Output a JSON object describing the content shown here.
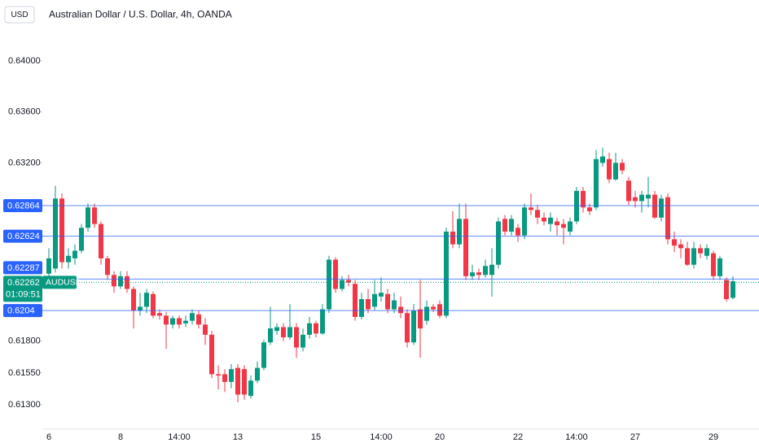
{
  "chart_data": {
    "type": "candlestick",
    "title": "Australian Dollar / U.S. Dollar, 4h, OANDA",
    "currency": "USD",
    "up_color": "#089981",
    "down_color": "#f23645",
    "level_color": "#2962ff",
    "ylim": [
      0.61109,
      0.64479
    ],
    "yticks": [
      {
        "value": 0.64,
        "label": "0.64000"
      },
      {
        "value": 0.636,
        "label": "0.63600"
      },
      {
        "value": 0.632,
        "label": "0.63200"
      },
      {
        "value": 0.618,
        "label": "0.61800"
      },
      {
        "value": 0.6155,
        "label": "0.61550"
      },
      {
        "value": 0.613,
        "label": "0.61300"
      }
    ],
    "levels": [
      0.62864,
      0.62624,
      0.62287,
      0.6204
    ],
    "last_price": {
      "value": 0.62262,
      "symbol": "AUDUSD",
      "countdown": "01:09:51"
    },
    "categories": [
      "6",
      null,
      null,
      null,
      null,
      null,
      null,
      null,
      null,
      null,
      null,
      "8",
      null,
      null,
      null,
      null,
      null,
      null,
      null,
      null,
      "14:00",
      null,
      null,
      null,
      null,
      null,
      null,
      null,
      null,
      "13",
      null,
      null,
      null,
      null,
      null,
      null,
      null,
      null,
      null,
      null,
      null,
      "15",
      null,
      null,
      null,
      null,
      null,
      null,
      null,
      null,
      null,
      "14:00",
      null,
      null,
      null,
      null,
      null,
      null,
      null,
      null,
      "20",
      null,
      null,
      null,
      null,
      null,
      null,
      null,
      null,
      null,
      null,
      null,
      "22",
      null,
      null,
      null,
      null,
      null,
      null,
      null,
      null,
      "14:00",
      null,
      null,
      null,
      null,
      null,
      null,
      null,
      null,
      "27",
      null,
      null,
      null,
      null,
      null,
      null,
      null,
      null,
      null,
      null,
      null,
      "29",
      null,
      null,
      null
    ],
    "open": [
      0.6233,
      0.6237,
      0.6292,
      0.6242,
      0.6245,
      0.6251,
      0.6269,
      0.6285,
      0.6272,
      0.6245,
      0.6232,
      0.6223,
      0.6231,
      0.6221,
      0.6204,
      0.6207,
      0.6217,
      0.6202,
      0.62,
      0.6193,
      0.6198,
      0.6194,
      0.6196,
      0.6201,
      0.6193,
      0.6185,
      0.6154,
      0.6154,
      0.6148,
      0.6159,
      0.6158,
      0.6137,
      0.6149,
      0.6159,
      0.6179,
      0.6188,
      0.6191,
      0.6183,
      0.6191,
      0.6175,
      0.6185,
      0.6194,
      0.6186,
      0.6205,
      0.6244,
      0.6221,
      0.6228,
      0.6225,
      0.6199,
      0.6213,
      0.6207,
      0.6215,
      0.6217,
      0.6205,
      0.6207,
      0.6202,
      0.6179,
      0.6205,
      0.6196,
      0.6207,
      0.6209,
      0.62,
      0.6266,
      0.6256,
      0.6276,
      0.6231,
      0.6234,
      0.6232,
      0.6232,
      0.624,
      0.6276,
      0.6266,
      0.6269,
      0.6263,
      0.6285,
      0.6283,
      0.6277,
      0.6272,
      0.6274,
      0.6272,
      0.6266,
      0.6274,
      0.6298,
      0.6285,
      0.6285,
      0.632,
      0.6323,
      0.6307,
      0.632,
      0.6306,
      0.6293,
      0.629,
      0.6292,
      0.6295,
      0.6277,
      0.6293,
      0.626,
      0.6256,
      0.6253,
      0.624,
      0.6253,
      0.6247,
      0.6249,
      0.6231,
      0.6228,
      0.6214
    ],
    "high": [
      0.6253,
      0.6302,
      0.6296,
      0.6253,
      0.6256,
      0.6272,
      0.6288,
      0.6288,
      0.6274,
      0.6247,
      0.6235,
      0.6235,
      0.6235,
      0.6223,
      0.6218,
      0.6221,
      0.6219,
      0.6205,
      0.6203,
      0.62,
      0.62,
      0.62,
      0.6205,
      0.6204,
      0.6198,
      0.6188,
      0.6161,
      0.6158,
      0.6162,
      0.6162,
      0.6161,
      0.6153,
      0.6164,
      0.6181,
      0.6207,
      0.6194,
      0.6194,
      0.6209,
      0.6194,
      0.619,
      0.6199,
      0.6196,
      0.6209,
      0.6247,
      0.6246,
      0.6231,
      0.6232,
      0.6228,
      0.6218,
      0.6221,
      0.6228,
      0.623,
      0.6221,
      0.6218,
      0.6215,
      0.6205,
      0.6209,
      0.6228,
      0.6212,
      0.6209,
      0.6212,
      0.6269,
      0.6282,
      0.6288,
      0.6288,
      0.624,
      0.6237,
      0.6244,
      0.6253,
      0.6277,
      0.6279,
      0.6279,
      0.6272,
      0.6288,
      0.6296,
      0.6287,
      0.6281,
      0.6281,
      0.6277,
      0.6276,
      0.6277,
      0.6301,
      0.6301,
      0.6288,
      0.633,
      0.6332,
      0.6328,
      0.6328,
      0.6323,
      0.6309,
      0.6298,
      0.6298,
      0.6309,
      0.6298,
      0.6295,
      0.6296,
      0.6266,
      0.626,
      0.6258,
      0.6258,
      0.6256,
      0.6256,
      0.6251,
      0.6247,
      0.623,
      0.6231
    ],
    "low": [
      0.6228,
      0.6234,
      0.6237,
      0.6237,
      0.624,
      0.6249,
      0.6266,
      0.6269,
      0.624,
      0.6228,
      0.6218,
      0.6221,
      0.6218,
      0.619,
      0.62,
      0.6202,
      0.6198,
      0.6197,
      0.6174,
      0.619,
      0.619,
      0.6191,
      0.6193,
      0.619,
      0.6177,
      0.6151,
      0.6142,
      0.614,
      0.6143,
      0.6132,
      0.6134,
      0.6135,
      0.6147,
      0.6157,
      0.6177,
      0.6185,
      0.618,
      0.6181,
      0.6167,
      0.6172,
      0.6182,
      0.6183,
      0.6185,
      0.6202,
      0.6218,
      0.6219,
      0.6223,
      0.6196,
      0.6197,
      0.6202,
      0.6204,
      0.6211,
      0.6202,
      0.6202,
      0.6198,
      0.6175,
      0.6177,
      0.6167,
      0.6193,
      0.6203,
      0.6198,
      0.6198,
      0.6253,
      0.6253,
      0.6228,
      0.6228,
      0.6228,
      0.623,
      0.6215,
      0.6237,
      0.6263,
      0.6263,
      0.6258,
      0.626,
      0.6279,
      0.6272,
      0.6271,
      0.6266,
      0.6263,
      0.6256,
      0.6263,
      0.6272,
      0.6281,
      0.6279,
      0.6283,
      0.6317,
      0.6304,
      0.6306,
      0.6311,
      0.6287,
      0.6285,
      0.6281,
      0.6285,
      0.6276,
      0.6274,
      0.6256,
      0.625,
      0.6245,
      0.6239,
      0.6237,
      0.6245,
      0.6244,
      0.6228,
      0.6228,
      0.6211,
      0.6213
    ],
    "close": [
      0.6245,
      0.6292,
      0.6242,
      0.6247,
      0.6251,
      0.6269,
      0.6285,
      0.6272,
      0.6245,
      0.6232,
      0.6223,
      0.6231,
      0.6221,
      0.6204,
      0.6207,
      0.6218,
      0.62,
      0.62,
      0.6193,
      0.6198,
      0.6193,
      0.6196,
      0.6202,
      0.6193,
      0.6185,
      0.6154,
      0.6153,
      0.6148,
      0.6158,
      0.6138,
      0.6138,
      0.6149,
      0.6159,
      0.6179,
      0.619,
      0.6191,
      0.6183,
      0.6191,
      0.6175,
      0.6185,
      0.6194,
      0.6186,
      0.6205,
      0.6244,
      0.6221,
      0.6228,
      0.6226,
      0.6199,
      0.6213,
      0.6205,
      0.6217,
      0.6218,
      0.6205,
      0.6212,
      0.6202,
      0.6179,
      0.6204,
      0.619,
      0.6207,
      0.6205,
      0.62,
      0.6266,
      0.6256,
      0.6276,
      0.6231,
      0.6234,
      0.6232,
      0.6239,
      0.624,
      0.6274,
      0.6266,
      0.6276,
      0.6263,
      0.6285,
      0.6283,
      0.6277,
      0.6274,
      0.6277,
      0.6271,
      0.6269,
      0.6274,
      0.6298,
      0.6285,
      0.6282,
      0.6323,
      0.6325,
      0.6307,
      0.632,
      0.6314,
      0.629,
      0.629,
      0.6295,
      0.6295,
      0.6277,
      0.6292,
      0.626,
      0.6255,
      0.6253,
      0.624,
      0.6253,
      0.6249,
      0.6253,
      0.6231,
      0.6245,
      0.6213,
      0.6227
    ]
  }
}
